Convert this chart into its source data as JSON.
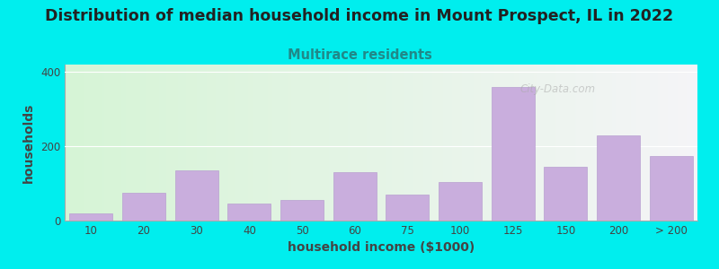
{
  "title": "Distribution of median household income in Mount Prospect, IL in 2022",
  "subtitle": "Multirace residents",
  "xlabel": "household income ($1000)",
  "ylabel": "households",
  "bar_labels": [
    "10",
    "20",
    "30",
    "40",
    "50",
    "60",
    "75",
    "100",
    "125",
    "150",
    "200",
    "> 200"
  ],
  "bar_values": [
    20,
    75,
    135,
    45,
    55,
    130,
    70,
    105,
    360,
    145,
    230,
    175
  ],
  "bar_color": "#c9aedd",
  "bar_edge_color": "#b8a0d0",
  "bg_color": "#00eeee",
  "plot_bg_left": "#d4f2d4",
  "plot_bg_right": "#f2f2f6",
  "title_color": "#222222",
  "subtitle_color": "#208888",
  "axis_color": "#444444",
  "ylim": [
    0,
    420
  ],
  "yticks": [
    0,
    200,
    400
  ],
  "watermark": "City-Data.com",
  "title_fontsize": 12.5,
  "subtitle_fontsize": 10.5,
  "label_fontsize": 8.5,
  "axis_label_fontsize": 10
}
